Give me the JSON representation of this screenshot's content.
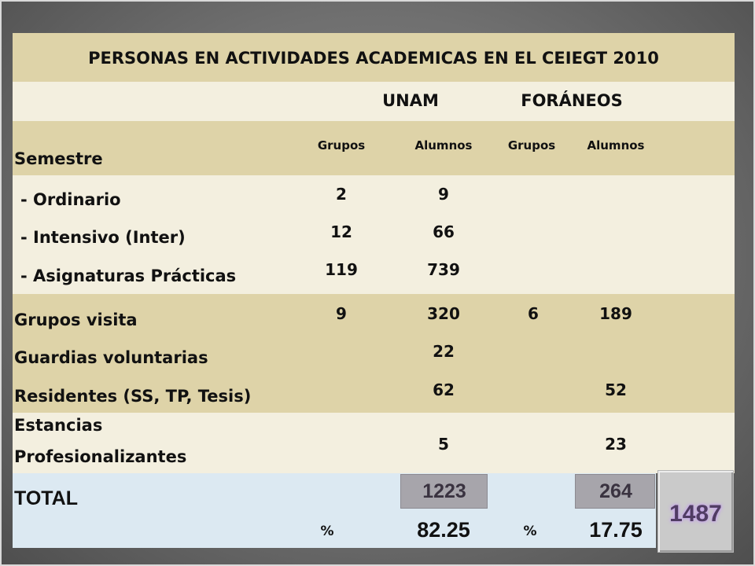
{
  "title": "PERSONAS EN ACTIVIDADES ACADEMICAS  EN EL CEIEGT 2010",
  "groups": {
    "unam": "UNAM",
    "foraneos": "FORÁNEOS"
  },
  "columns": {
    "semestre": "Semestre",
    "grupos": "Grupos",
    "alumnos": "Alumnos"
  },
  "rows": [
    {
      "label": "- Ordinario",
      "unam_grupos": "2",
      "unam_alumnos": "9",
      "for_grupos": "",
      "for_alumnos": ""
    },
    {
      "label": "-  Intensivo (Inter)",
      "unam_grupos": "12",
      "unam_alumnos": "66",
      "for_grupos": "",
      "for_alumnos": ""
    },
    {
      "label": "-  Asignaturas Prácticas",
      "unam_grupos": "119",
      "unam_alumnos": "739",
      "for_grupos": "",
      "for_alumnos": ""
    },
    {
      "label": "Grupos visita",
      "unam_grupos": "9",
      "unam_alumnos": "320",
      "for_grupos": "6",
      "for_alumnos": "189"
    },
    {
      "label": "Guardias voluntarias",
      "unam_grupos": "",
      "unam_alumnos": "22",
      "for_grupos": "",
      "for_alumnos": ""
    },
    {
      "label": "Residentes (SS, TP, Tesis)",
      "unam_grupos": "",
      "unam_alumnos": "62",
      "for_grupos": "",
      "for_alumnos": "52"
    },
    {
      "label_line1": "Estancias",
      "label_line2": "Profesionalizantes",
      "unam_grupos": "",
      "unam_alumnos": "5",
      "for_grupos": "",
      "for_alumnos": "23"
    }
  ],
  "total": {
    "label": "TOTAL",
    "unam": "1223",
    "foraneos": "264",
    "grand": "1487",
    "pct_symbol": "%",
    "unam_pct": "82.25",
    "foraneos_pct": "17.75"
  },
  "colors": {
    "tan": "#ded3a8",
    "cream": "#f3efdf",
    "blue": "#dce9f2",
    "total_box": "#a7a5ab",
    "grand_text": "#503c63"
  }
}
